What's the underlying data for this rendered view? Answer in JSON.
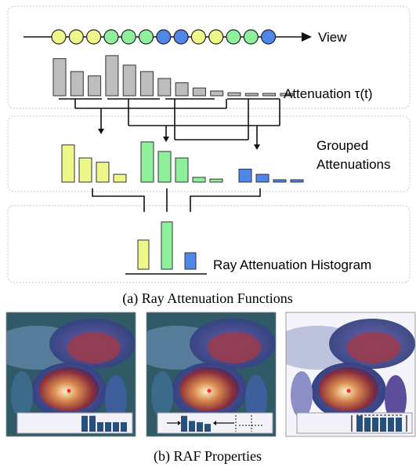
{
  "labels": {
    "view": "View",
    "attenuation": "Attenuation τ(t)",
    "grouped_line1": "Grouped",
    "grouped_line2": "Attenuations",
    "histogram": "Ray Attenuation Histogram"
  },
  "captions": {
    "a": "(a) Ray Attenuation Functions",
    "b": "(b) RAF Properties"
  },
  "colors": {
    "yellow": "#eef78a",
    "green": "#8ef09a",
    "blue": "#4f86e8",
    "gray": "#bdbdbd",
    "histogram_bar": "#27507e"
  },
  "view_ray": {
    "sample_colors": [
      "yellow",
      "yellow",
      "yellow",
      "green",
      "green",
      "green",
      "blue",
      "blue",
      "yellow",
      "yellow",
      "green",
      "green",
      "blue"
    ]
  },
  "attenuation_values": [
    0.86,
    0.56,
    0.46,
    0.93,
    0.71,
    0.56,
    0.4,
    0.3,
    0.18,
    0.11,
    0.07,
    0.05,
    0.04,
    0.04
  ],
  "grouped": {
    "yellow": [
      0.86,
      0.56,
      0.46,
      0.18
    ],
    "green": [
      0.93,
      0.71,
      0.56,
      0.11,
      0.07
    ],
    "blue": [
      0.3,
      0.18,
      0.04,
      0.04
    ]
  },
  "histogram": {
    "yellow": 0.53,
    "green": 0.86,
    "blue": 0.3
  },
  "thumbnails": [
    {
      "bars": [
        0.92,
        0.92,
        0.55,
        0.55,
        0.55,
        0.55
      ]
    },
    {
      "bars": [
        0.92,
        0.62,
        0.55,
        0.45
      ]
    },
    {
      "bars": [
        0.92,
        0.82,
        0.82,
        0.82,
        0.82,
        0.82
      ]
    }
  ]
}
